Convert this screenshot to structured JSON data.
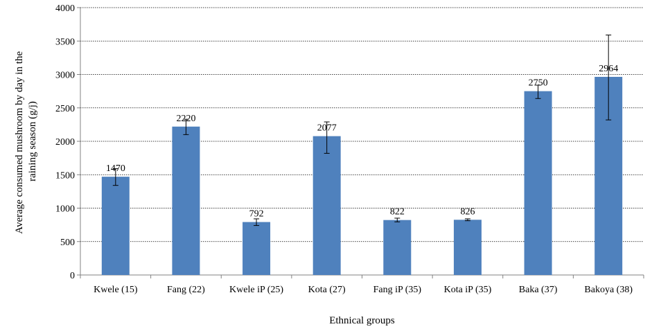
{
  "chart_data": {
    "type": "bar",
    "title": "",
    "xlabel": "Ethnical groups",
    "ylabel_lines": [
      "Average consumed mushroom by day in the",
      "raining season (g/j)"
    ],
    "categories": [
      "Kwele (15)",
      "Fang (22)",
      "Kwele iP (25)",
      "Kota (27)",
      "Fang iP (35)",
      "Kota iP (35)",
      "Baka (37)",
      "Bakoya (38)"
    ],
    "values": [
      1470,
      2220,
      792,
      2077,
      822,
      826,
      2750,
      2964
    ],
    "value_labels": [
      "1470",
      "2220",
      "792",
      "2077",
      "822",
      "826",
      "2750",
      "2964"
    ],
    "error_low": [
      1340,
      2100,
      740,
      1820,
      795,
      812,
      2640,
      2320
    ],
    "error_high": [
      1590,
      2330,
      840,
      2290,
      850,
      840,
      2840,
      3590
    ],
    "ylim": [
      0,
      4000
    ],
    "yticks": [
      0,
      500,
      1000,
      1500,
      2000,
      2500,
      3000,
      3500,
      4000
    ],
    "ytick_labels": [
      "0",
      "500",
      "1000",
      "1500",
      "2000",
      "2500",
      "3000",
      "3500",
      "4000"
    ],
    "grid": true,
    "bar_color": "#4F81BD"
  }
}
